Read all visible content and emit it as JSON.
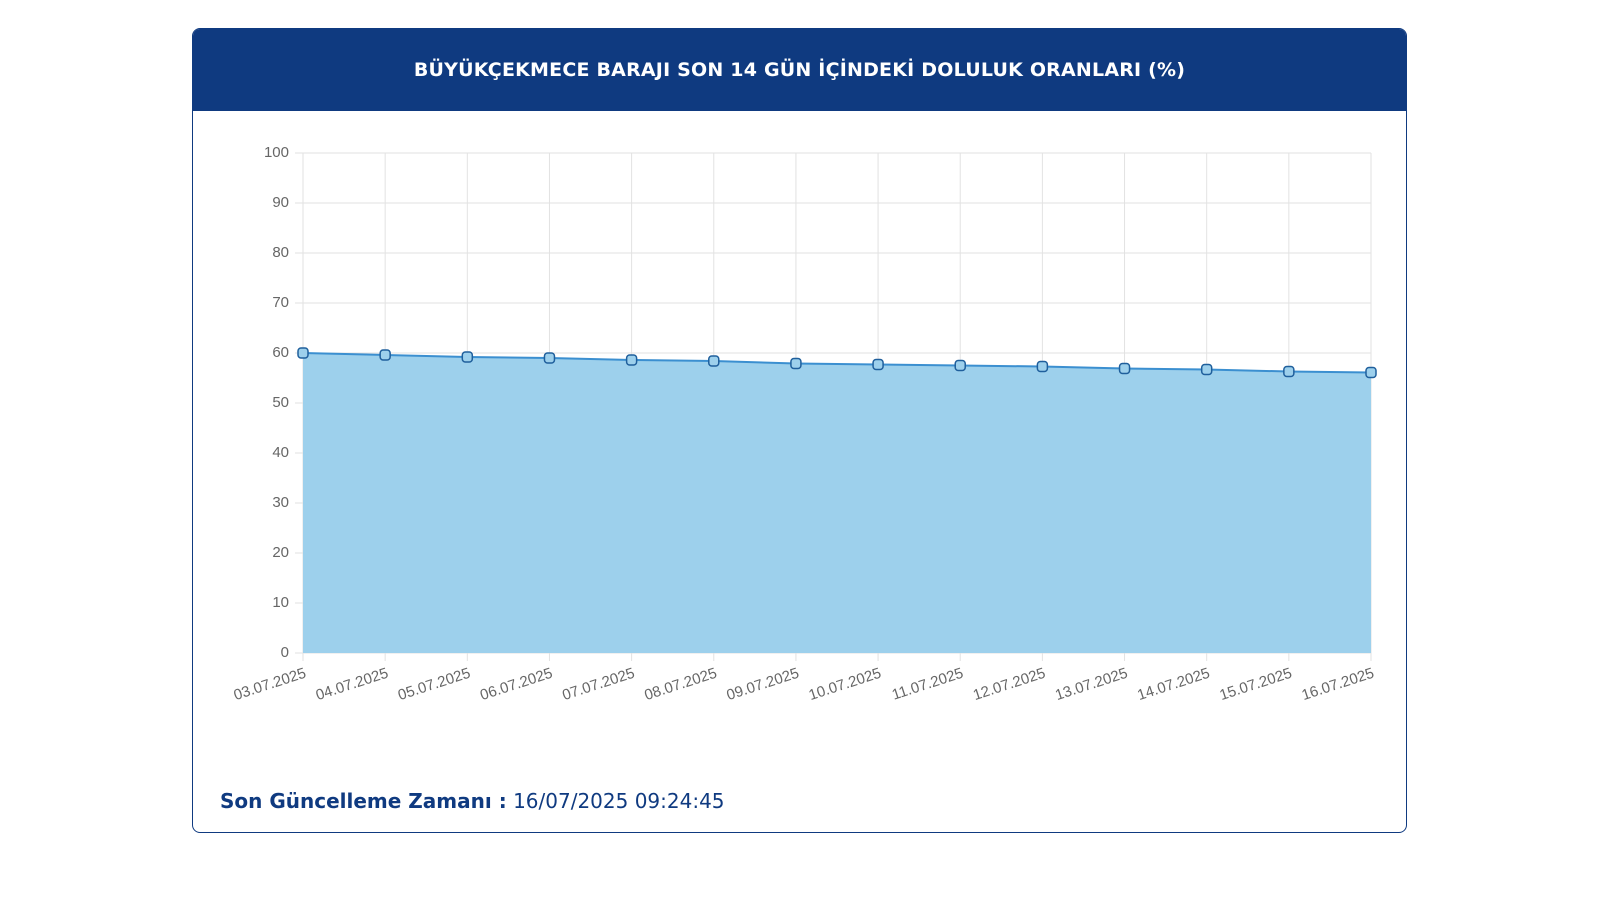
{
  "chart_data": {
    "type": "area",
    "title": "BÜYÜKÇEKMECE BARAJI SON 14 GÜN İÇİNDEKİ DOLULUK ORANLARI (%)",
    "categories": [
      "03.07.2025",
      "04.07.2025",
      "05.07.2025",
      "06.07.2025",
      "07.07.2025",
      "08.07.2025",
      "09.07.2025",
      "10.07.2025",
      "11.07.2025",
      "12.07.2025",
      "13.07.2025",
      "14.07.2025",
      "15.07.2025",
      "16.07.2025"
    ],
    "series": [
      {
        "name": "Doluluk",
        "color": "#3b8fd0",
        "fill_color": "#9dd0ec",
        "values": [
          60.0,
          59.6,
          59.2,
          59.0,
          58.6,
          58.4,
          57.9,
          57.7,
          57.5,
          57.3,
          56.9,
          56.7,
          56.3,
          56.1
        ]
      }
    ],
    "ylim": [
      0,
      100
    ],
    "yticks": [
      0,
      10,
      20,
      30,
      40,
      50,
      60,
      70,
      80,
      90,
      100
    ],
    "grid": true
  },
  "footer": {
    "label": "Son Güncelleme Zamanı :",
    "value": "16/07/2025 09:24:45"
  }
}
